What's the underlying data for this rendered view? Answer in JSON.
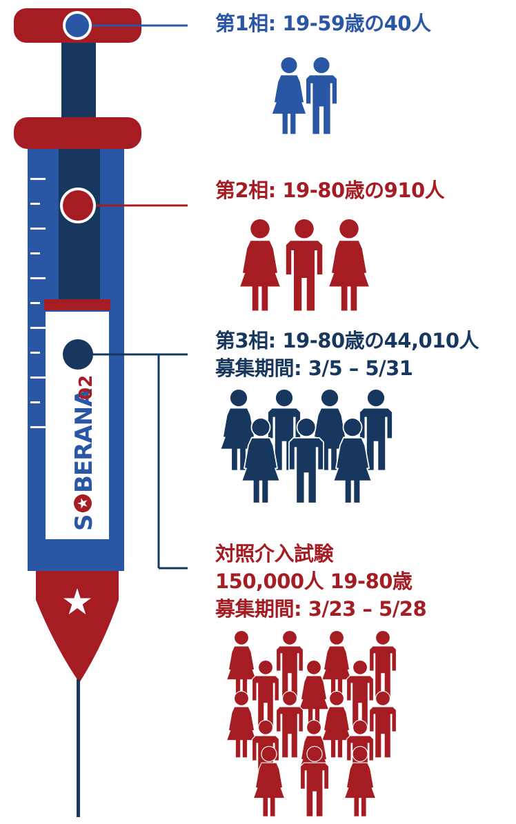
{
  "colors": {
    "blue": "#2a56a6",
    "red": "#a51c22",
    "navy": "#17375e",
    "white": "#ffffff"
  },
  "icons": {
    "person": "person-icon",
    "star": "star-icon"
  },
  "syringe": {
    "brand_prefix": "S",
    "brand_suffix": "BERANA",
    "brand_number": "02"
  },
  "phases": [
    {
      "title": "第1相: 19-59歳の40人",
      "color": "#2a56a6",
      "icon_count": 2
    },
    {
      "title": "第2相: 19-80歳の910人",
      "color": "#a51c22",
      "icon_count": 3
    },
    {
      "title": "第3相: 19-80歳の44,010人",
      "period": "募集期間: 3/5 – 5/31",
      "color": "#17375e",
      "icon_count": 7
    },
    {
      "title": "対照介入試験",
      "detail": "150,000人  19-80歳",
      "period": "募集期間: 3/23 – 5/28",
      "color": "#a51c22",
      "icon_count": 17
    }
  ]
}
